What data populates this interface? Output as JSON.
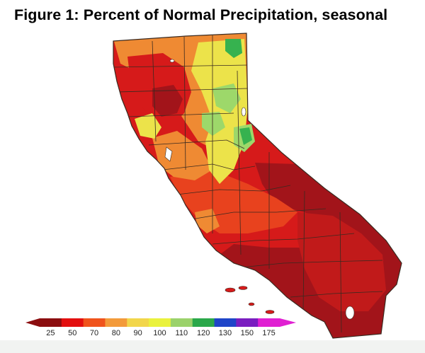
{
  "title": "Figure 1: Percent of Normal Precipitation, seasonal",
  "legend": {
    "tick_labels": [
      "25",
      "50",
      "70",
      "80",
      "90",
      "100",
      "110",
      "120",
      "130",
      "150",
      "175"
    ],
    "colors": [
      "#8b0d0f",
      "#e30f0f",
      "#f0531c",
      "#f39a3a",
      "#f2d64b",
      "#eaf23d",
      "#9bd26b",
      "#2aa84a",
      "#1f45c8",
      "#7a1ec0",
      "#e020d2"
    ]
  },
  "map_colors": {
    "dark_red": "#a2141a",
    "red": "#d61a1a",
    "red_orange": "#e8421e",
    "orange": "#ef8a33",
    "yellow": "#ece34a",
    "light_green": "#9dd86a",
    "green": "#36b24f",
    "water": "#ffffff"
  }
}
